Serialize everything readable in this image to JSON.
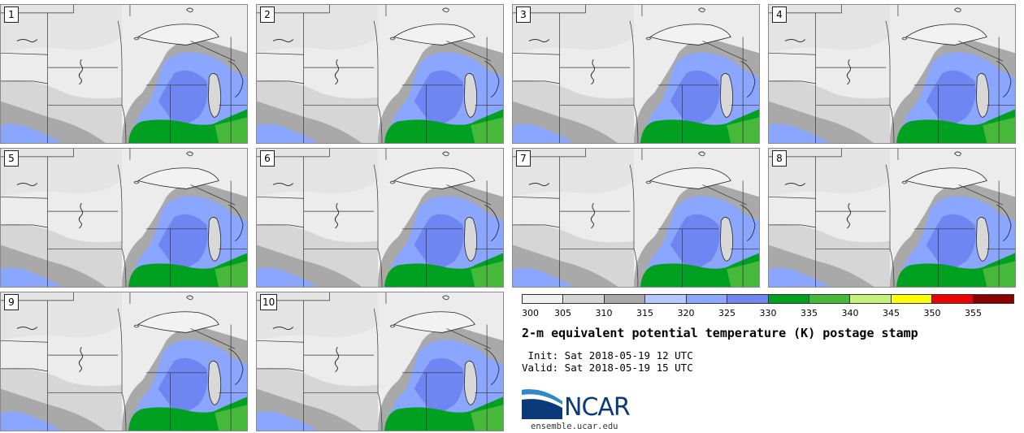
{
  "panels": [
    {
      "label": "1"
    },
    {
      "label": "2"
    },
    {
      "label": "3"
    },
    {
      "label": "4"
    },
    {
      "label": "5"
    },
    {
      "label": "6"
    },
    {
      "label": "7"
    },
    {
      "label": "8"
    },
    {
      "label": "9"
    },
    {
      "label": "10"
    }
  ],
  "colorbar": {
    "colors": [
      "#f0f0f0",
      "#d4d4d4",
      "#a9a9a9",
      "#b6c8ff",
      "#8aa6ff",
      "#6f86f2",
      "#00a020",
      "#46b83a",
      "#c4f27a",
      "#ffff00",
      "#ee0000",
      "#8a0000"
    ],
    "ticks": [
      "300",
      "305",
      "310",
      "315",
      "320",
      "325",
      "330",
      "335",
      "340",
      "345",
      "350",
      "355"
    ]
  },
  "title": "2-m equivalent potential temperature (K) postage stamp",
  "init": " Init: Sat 2018-05-19 12 UTC",
  "valid": "Valid: Sat 2018-05-19 15 UTC",
  "logo": {
    "text": "NCAR",
    "url": "ensemble.ucar.edu"
  }
}
